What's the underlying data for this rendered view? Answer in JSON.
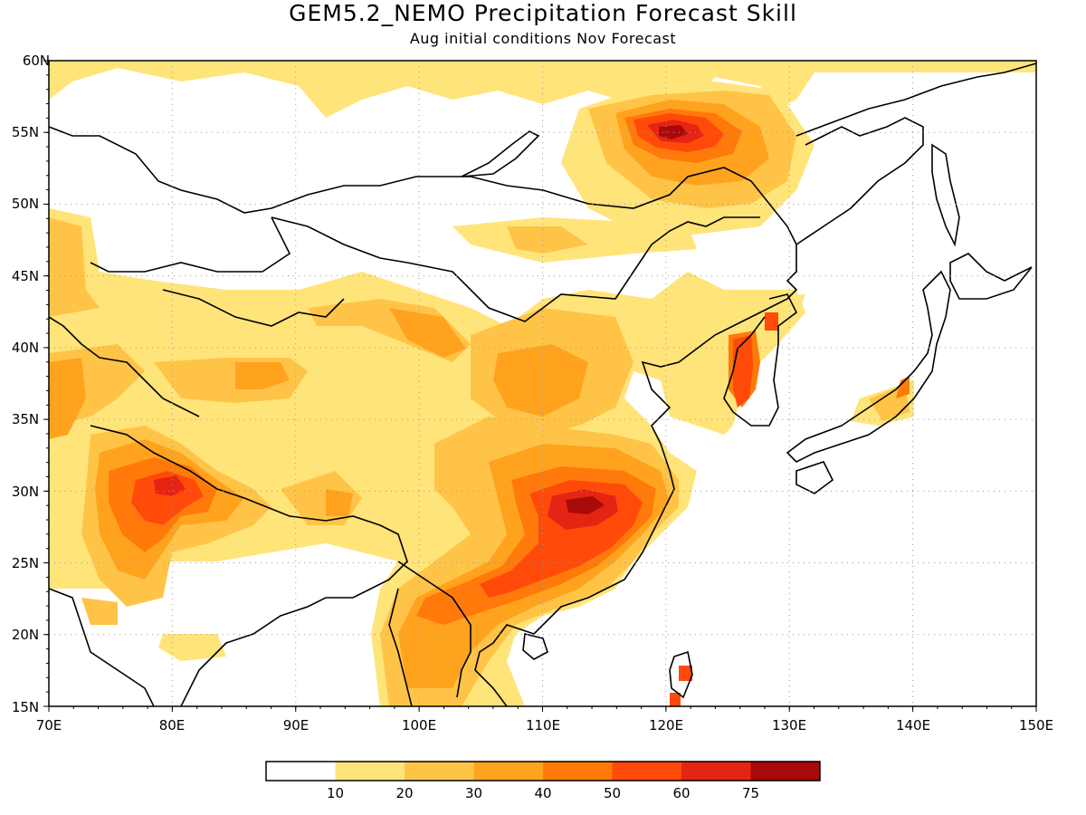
{
  "title": "GEM5.2_NEMO Precipitation Forecast Skill",
  "subtitle": "Aug initial conditions  Nov Forecast",
  "map": {
    "lon_range": [
      70,
      150
    ],
    "lat_range": [
      15,
      60
    ],
    "lat_labels": [
      "60N",
      "55N",
      "50N",
      "45N",
      "40N",
      "35N",
      "30N",
      "25N",
      "20N",
      "15N"
    ],
    "lon_labels": [
      "70E",
      "80E",
      "90E",
      "100E",
      "110E",
      "120E",
      "130E",
      "140E",
      "150E"
    ],
    "grid": true
  },
  "colorbar": {
    "colors": [
      "#ffffff",
      "#ffe47a",
      "#ffc447",
      "#ffa31f",
      "#ff7a0a",
      "#ff4a0a",
      "#e62414",
      "#a80a0a"
    ],
    "labels": [
      "10",
      "20",
      "30",
      "40",
      "50",
      "60",
      "75"
    ]
  }
}
